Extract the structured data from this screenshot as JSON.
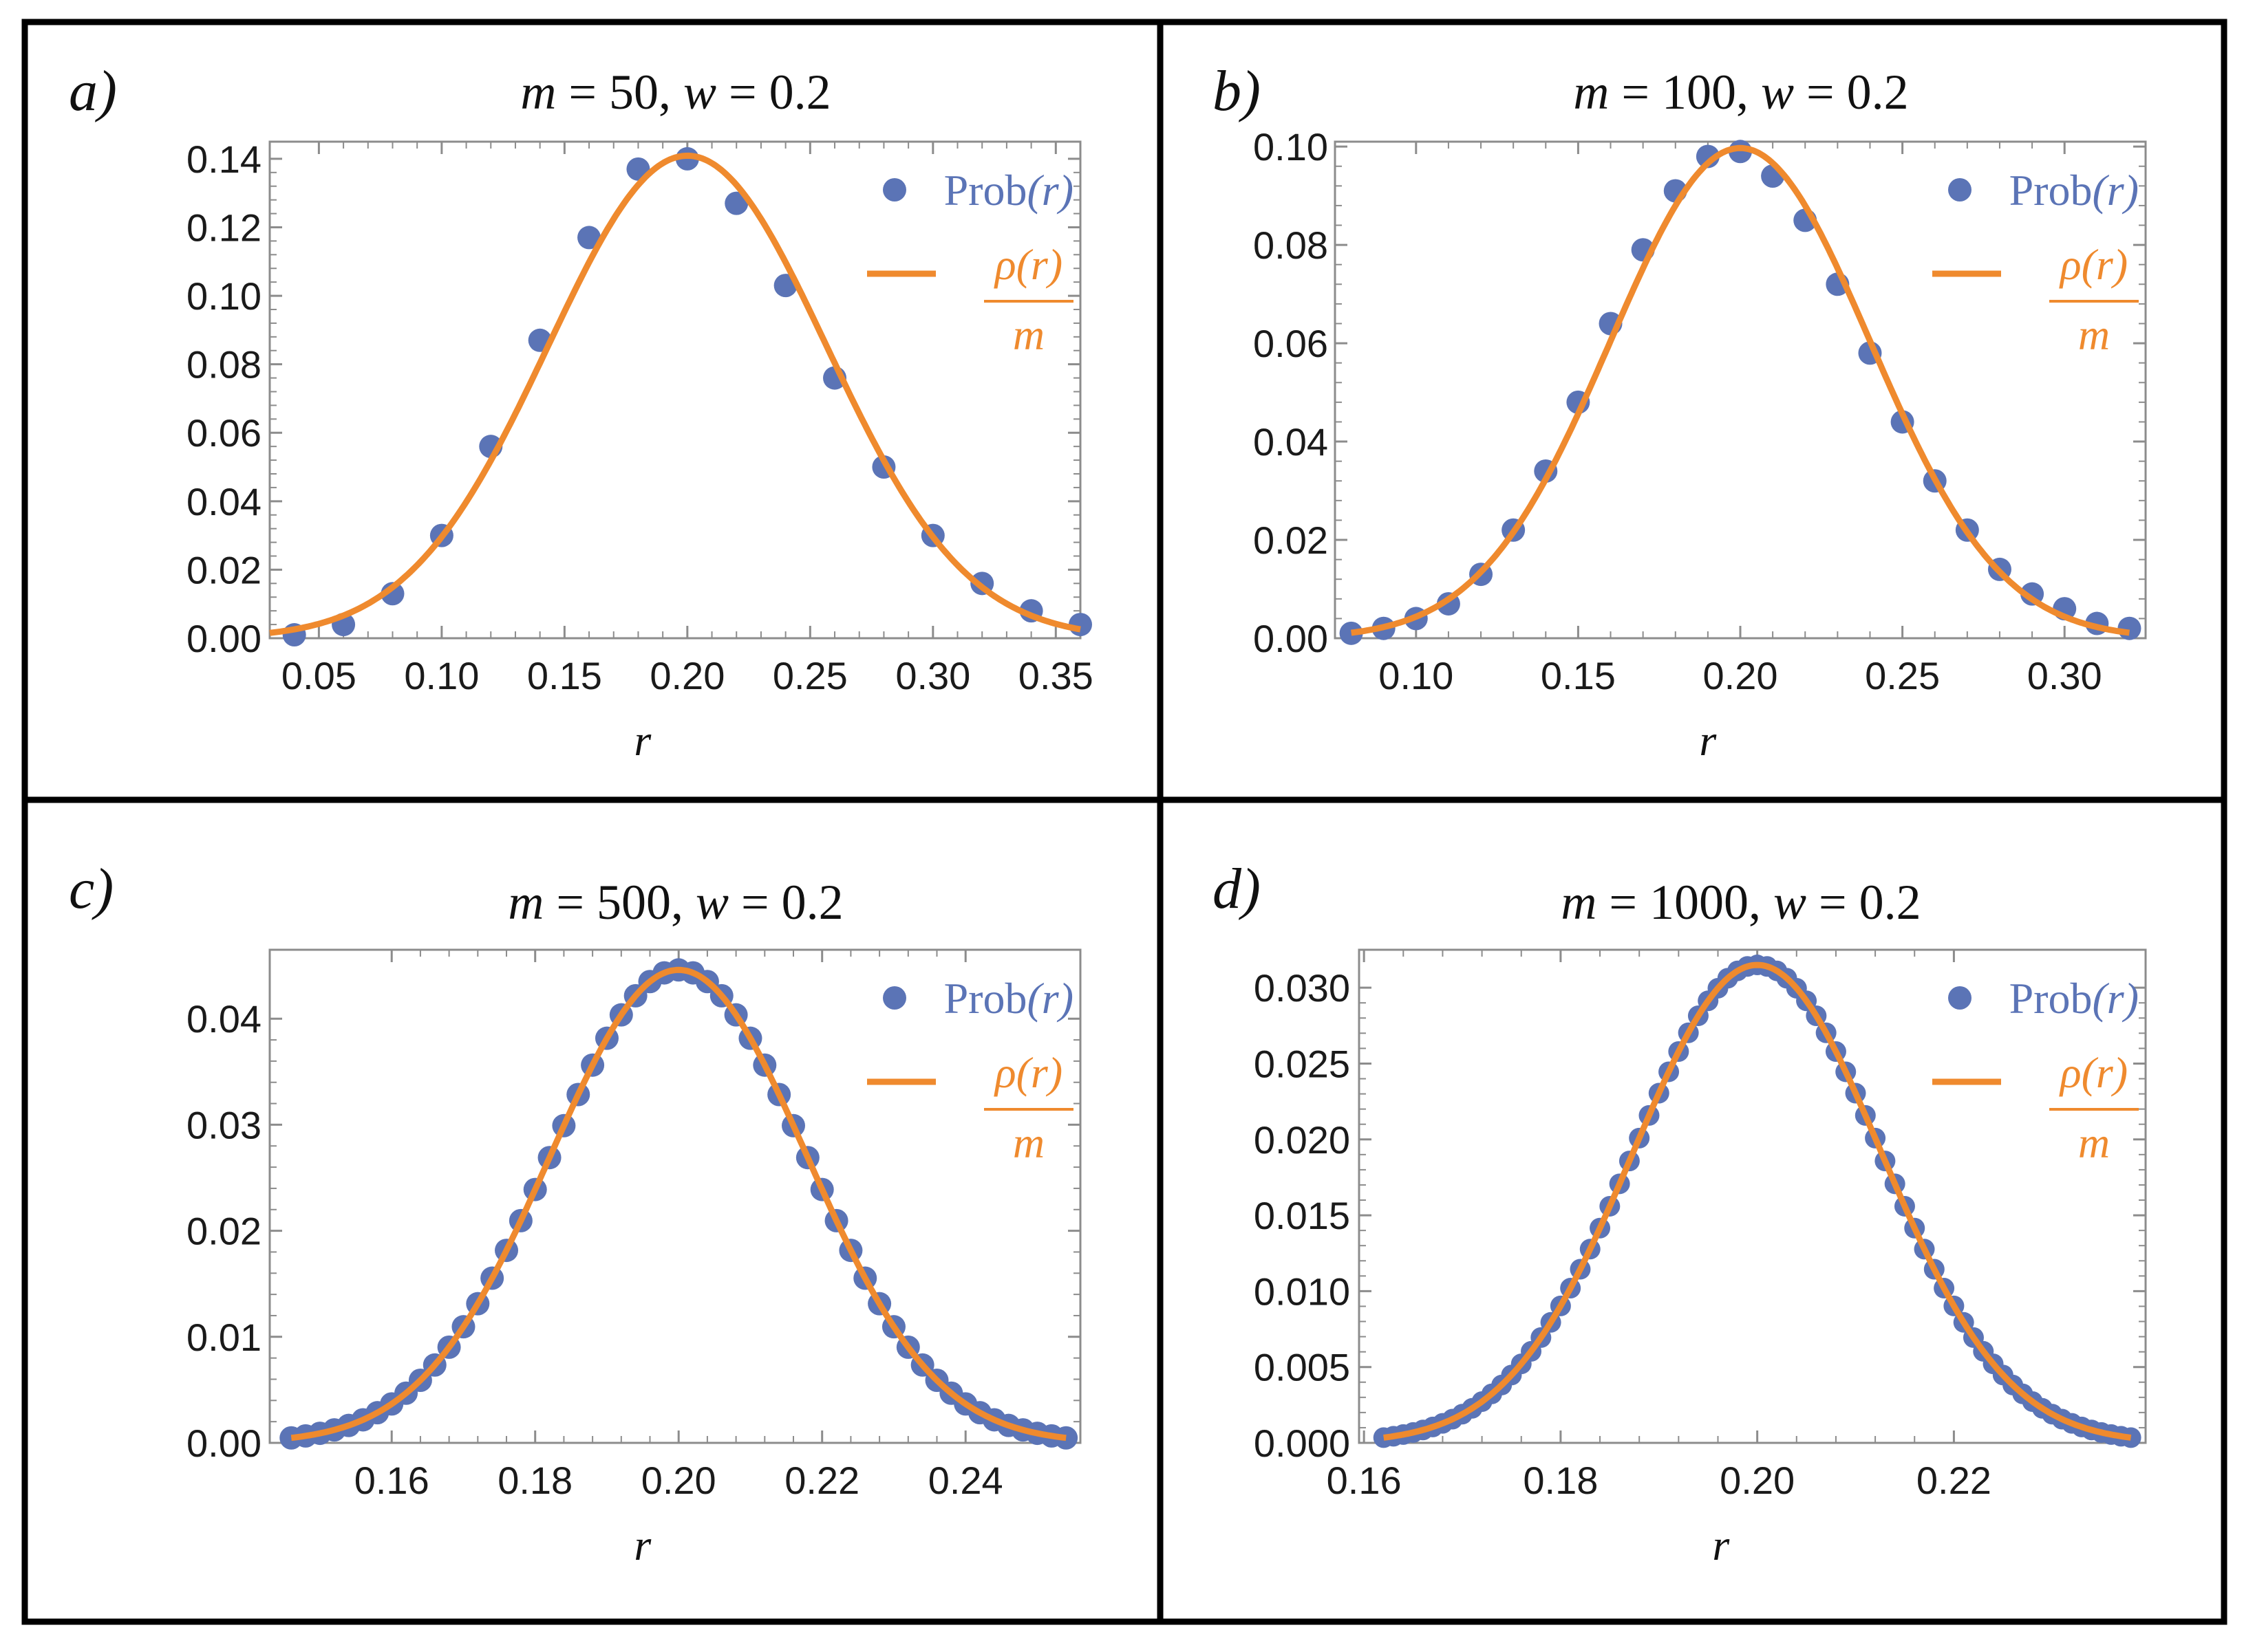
{
  "colors": {
    "points": "#5b74b6",
    "curve": "#ef8a2e",
    "frame": "#000000",
    "axes": "#8c8c8c"
  },
  "legend": {
    "points_label": "Prob",
    "points_var": "(r)",
    "curve_numerator": "ρ(r)",
    "curve_denominator": "m"
  },
  "chart_data": [
    {
      "type": "scatter",
      "panel_label": "a)",
      "title": "m = 50, w = 0.2",
      "title_parts": {
        "m_value": "50",
        "w_value": "0.2"
      },
      "xlabel": "r",
      "ylabel": "",
      "xlim": [
        0.03,
        0.36
      ],
      "ylim": [
        0.0,
        0.145
      ],
      "xticks": [
        0.05,
        0.1,
        0.15,
        0.2,
        0.25,
        0.3,
        0.35
      ],
      "xtick_labels": [
        "0.05",
        "0.10",
        "0.15",
        "0.20",
        "0.25",
        "0.30",
        "0.35"
      ],
      "yticks": [
        0.0,
        0.02,
        0.04,
        0.06,
        0.08,
        0.1,
        0.12,
        0.14
      ],
      "ytick_labels": [
        "0.00",
        "0.02",
        "0.04",
        "0.06",
        "0.08",
        "0.10",
        "0.12",
        "0.14"
      ],
      "legend_position": "top-right",
      "series": [
        {
          "name": "Prob(r)",
          "kind": "points",
          "x": [
            0.04,
            0.06,
            0.08,
            0.1,
            0.12,
            0.14,
            0.16,
            0.18,
            0.2,
            0.22,
            0.24,
            0.26,
            0.28,
            0.3,
            0.32,
            0.34,
            0.36
          ],
          "y": [
            0.001,
            0.004,
            0.013,
            0.03,
            0.056,
            0.087,
            0.117,
            0.137,
            0.14,
            0.127,
            0.103,
            0.076,
            0.05,
            0.03,
            0.016,
            0.008,
            0.004
          ]
        },
        {
          "name": "ρ(r)/m",
          "kind": "line",
          "model": "gaussian",
          "mean": 0.2,
          "sd": 0.0566,
          "peak": 0.1409,
          "x_range": [
            0.03,
            0.36
          ]
        }
      ]
    },
    {
      "type": "scatter",
      "panel_label": "b)",
      "title": "m = 100, w = 0.2",
      "title_parts": {
        "m_value": "100",
        "w_value": "0.2"
      },
      "xlabel": "r",
      "ylabel": "",
      "xlim": [
        0.075,
        0.325
      ],
      "ylim": [
        0.0,
        0.101
      ],
      "xticks": [
        0.1,
        0.15,
        0.2,
        0.25,
        0.3
      ],
      "xtick_labels": [
        "0.10",
        "0.15",
        "0.20",
        "0.25",
        "0.30"
      ],
      "yticks": [
        0.0,
        0.02,
        0.04,
        0.06,
        0.08,
        0.1
      ],
      "ytick_labels": [
        "0.00",
        "0.02",
        "0.04",
        "0.06",
        "0.08",
        "0.10"
      ],
      "legend_position": "top-right",
      "series": [
        {
          "name": "Prob(r)",
          "kind": "points",
          "x": [
            0.08,
            0.09,
            0.1,
            0.11,
            0.12,
            0.13,
            0.14,
            0.15,
            0.16,
            0.17,
            0.18,
            0.19,
            0.2,
            0.21,
            0.22,
            0.23,
            0.24,
            0.25,
            0.26,
            0.27,
            0.28,
            0.29,
            0.3,
            0.31,
            0.32
          ],
          "y": [
            0.001,
            0.002,
            0.004,
            0.007,
            0.013,
            0.022,
            0.034,
            0.048,
            0.064,
            0.079,
            0.091,
            0.098,
            0.099,
            0.094,
            0.085,
            0.072,
            0.058,
            0.044,
            0.032,
            0.022,
            0.014,
            0.009,
            0.006,
            0.003,
            0.002
          ]
        },
        {
          "name": "ρ(r)/m",
          "kind": "line",
          "model": "gaussian",
          "mean": 0.2,
          "sd": 0.04,
          "peak": 0.0997,
          "x_range": [
            0.08,
            0.32
          ]
        }
      ]
    },
    {
      "type": "scatter",
      "panel_label": "c)",
      "title": "m = 500, w = 0.2",
      "title_parts": {
        "m_value": "500",
        "w_value": "0.2"
      },
      "xlabel": "r",
      "ylabel": "",
      "xlim": [
        0.143,
        0.256
      ],
      "ylim": [
        0.0,
        0.0465
      ],
      "xticks": [
        0.16,
        0.18,
        0.2,
        0.22,
        0.24
      ],
      "xtick_labels": [
        "0.16",
        "0.18",
        "0.20",
        "0.22",
        "0.24"
      ],
      "yticks": [
        0.0,
        0.01,
        0.02,
        0.03,
        0.04
      ],
      "ytick_labels": [
        "0.00",
        "0.01",
        "0.02",
        "0.03",
        "0.04"
      ],
      "legend_position": "top-right",
      "series": [
        {
          "name": "Prob(r)",
          "kind": "points",
          "model": "gaussian",
          "x_start": 0.146,
          "x_end": 0.254,
          "x_step": 0.002,
          "mean": 0.2,
          "sd": 0.0179,
          "peak": 0.0446
        },
        {
          "name": "ρ(r)/m",
          "kind": "line",
          "model": "gaussian",
          "mean": 0.2,
          "sd": 0.0179,
          "peak": 0.0446,
          "x_range": [
            0.146,
            0.254
          ]
        }
      ]
    },
    {
      "type": "scatter",
      "panel_label": "d)",
      "title": "m = 1000, w = 0.2",
      "title_parts": {
        "m_value": "1000",
        "w_value": "0.2"
      },
      "xlabel": "r",
      "ylabel": "",
      "xlim": [
        0.1595,
        0.2395
      ],
      "ylim": [
        0.0,
        0.0325
      ],
      "xticks": [
        0.16,
        0.18,
        0.2,
        0.22
      ],
      "xtick_labels": [
        "0.16",
        "0.18",
        "0.20",
        "0.22"
      ],
      "yticks": [
        0.0,
        0.005,
        0.01,
        0.015,
        0.02,
        0.025,
        0.03
      ],
      "ytick_labels": [
        "0.000",
        "0.005",
        "0.010",
        "0.015",
        "0.020",
        "0.025",
        "0.030"
      ],
      "legend_position": "top-right",
      "series": [
        {
          "name": "Prob(r)",
          "kind": "points",
          "model": "gaussian",
          "x_start": 0.162,
          "x_end": 0.238,
          "x_step": 0.001,
          "mean": 0.2,
          "sd": 0.01265,
          "peak": 0.0315
        },
        {
          "name": "ρ(r)/m",
          "kind": "line",
          "model": "gaussian",
          "mean": 0.2,
          "sd": 0.01265,
          "peak": 0.0315,
          "x_range": [
            0.162,
            0.238
          ]
        }
      ]
    }
  ]
}
